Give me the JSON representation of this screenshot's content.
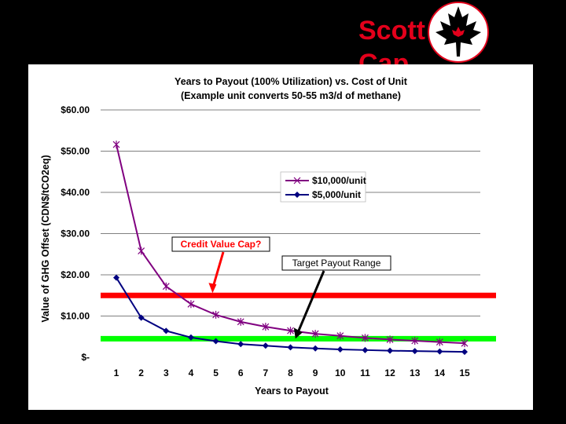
{
  "header": {
    "brand_line1": "Scott",
    "brand_line2": "Cap",
    "logo_icon": "maple-leaf-icon"
  },
  "chart_data": {
    "type": "line",
    "title": "Years to Payout (100% Utilization) vs. Cost of Unit",
    "subtitle": "(Example unit converts 50-55 m3/d of methane)",
    "xlabel": "Years to Payout",
    "ylabel": "Value of GHG Offset (CDN$/tCO2eq)",
    "ylim": [
      0,
      60
    ],
    "xlim": [
      1,
      15
    ],
    "grid": "horizontal",
    "legend_position": "right",
    "x": [
      1,
      2,
      3,
      4,
      5,
      6,
      7,
      8,
      9,
      10,
      11,
      12,
      13,
      14,
      15
    ],
    "y_ticks": [
      "$-",
      "$10.00",
      "$20.00",
      "$30.00",
      "$40.00",
      "$50.00",
      "$60.00"
    ],
    "y_tick_values": [
      0,
      10,
      20,
      30,
      40,
      50,
      60
    ],
    "series": [
      {
        "name": "$10,000/unit",
        "color": "#800080",
        "marker": "x",
        "values": [
          51.6,
          25.8,
          17.2,
          12.9,
          10.3,
          8.6,
          7.4,
          6.45,
          5.7,
          5.2,
          4.7,
          4.3,
          4.0,
          3.7,
          3.4
        ]
      },
      {
        "name": "$5,000/unit",
        "color": "#000080",
        "marker": "diamond",
        "values": [
          19.3,
          9.6,
          6.4,
          4.8,
          3.9,
          3.2,
          2.8,
          2.4,
          2.15,
          1.9,
          1.75,
          1.6,
          1.5,
          1.4,
          1.3
        ]
      }
    ],
    "reference_lines": [
      {
        "value": 15,
        "color": "#ff0000"
      },
      {
        "value": 4.5,
        "color": "#00ff00"
      }
    ],
    "annotations": [
      {
        "text": "Credit Value Cap?",
        "color": "#ff0000",
        "target_x": 4.9,
        "target_y": 15
      },
      {
        "text": "Target Payout Range",
        "color": "#000000",
        "target_x": 8.2,
        "target_y": 4.5
      }
    ]
  }
}
